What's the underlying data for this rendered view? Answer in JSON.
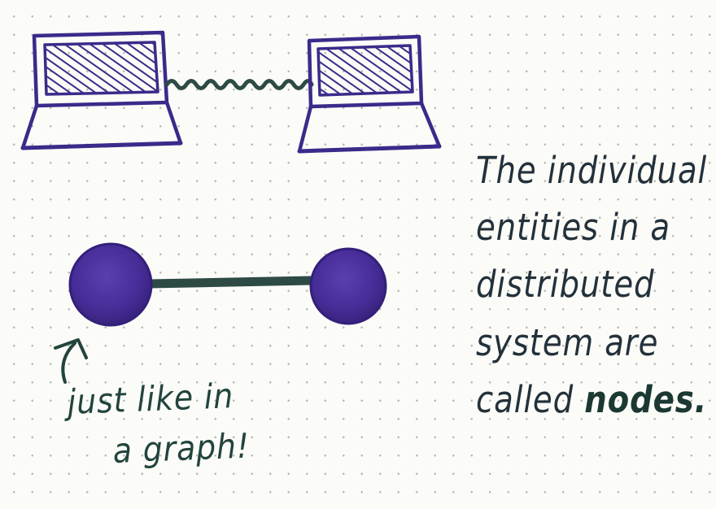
{
  "diagram": {
    "caption_lines": [
      "The individual",
      "entities in a",
      "distributed",
      "system are",
      "called"
    ],
    "emphasis_word": "nodes.",
    "side_note_lines": [
      "just like in",
      "a graph!"
    ],
    "colors": {
      "ink_purple": "#3c2a8a",
      "node_fill": "#4a2f9a",
      "edge_green": "#2e4a44",
      "text_ink": "#23313a",
      "paper": "#fbfbf8"
    },
    "icons": [
      "laptop-icon",
      "laptop-icon",
      "wavy-connection-icon",
      "graph-node-icon",
      "graph-node-icon",
      "arrow-up-icon"
    ]
  }
}
